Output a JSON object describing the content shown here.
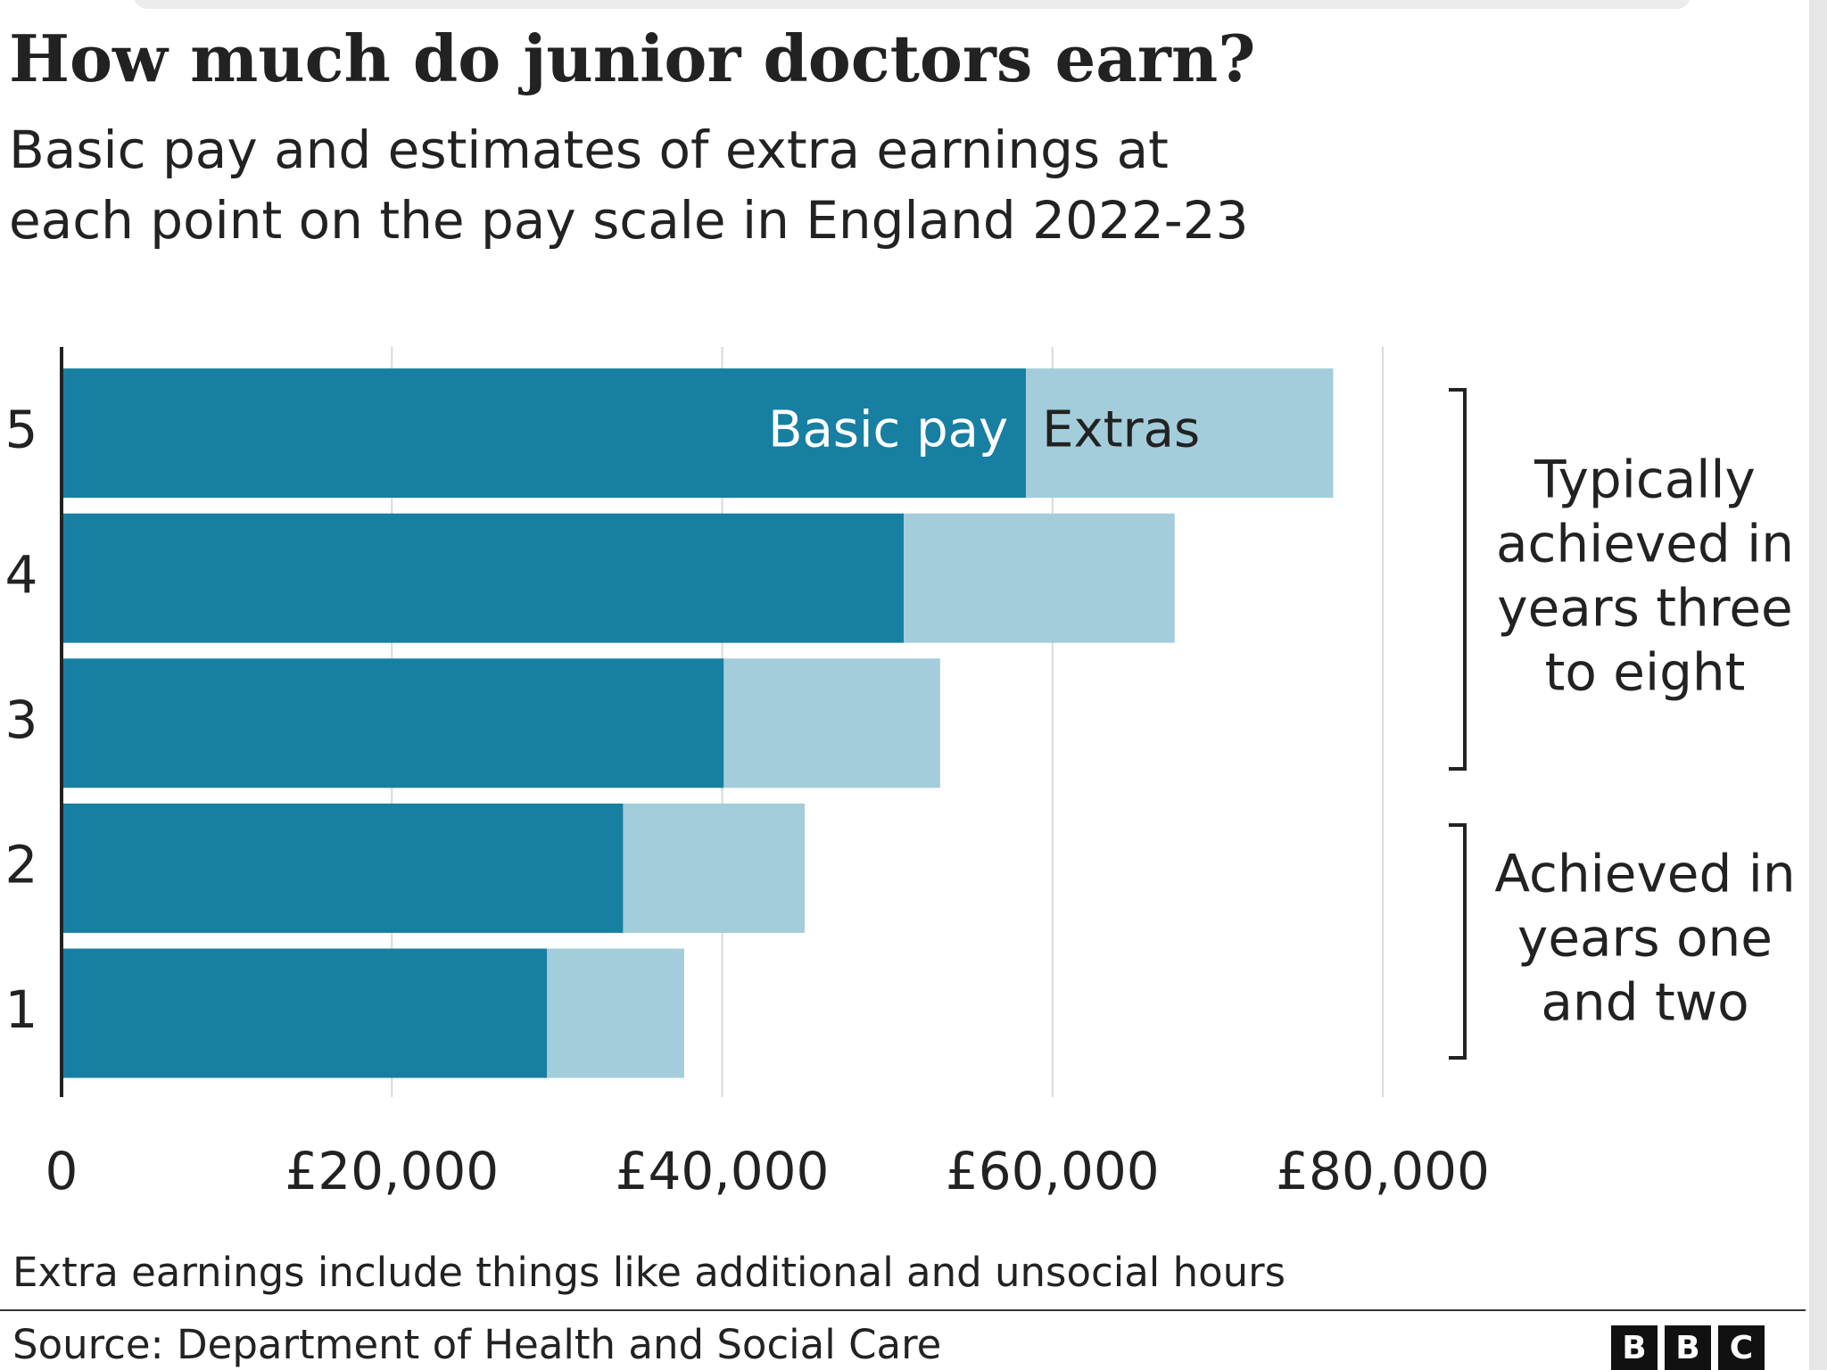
{
  "chart_data": {
    "type": "stacked-barh",
    "title": "How much do junior doctors earn?",
    "subtitle": [
      "Basic pay and estimates of extra earnings at",
      "each point on the pay scale in England 2022-23"
    ],
    "categories": [
      "1",
      "2",
      "3",
      "4",
      "5"
    ],
    "series": [
      {
        "name": "Basic pay",
        "color": "#177fa1",
        "values": [
          29400,
          34000,
          40100,
          51000,
          58400
        ]
      },
      {
        "name": "Extras",
        "color": "#a3cddb",
        "values": [
          8300,
          11000,
          13100,
          16400,
          18600
        ]
      }
    ],
    "xlim": [
      0,
      80000
    ],
    "xticks": [
      0,
      {
        "value": 20000,
        "label": "£20,000"
      },
      {
        "value": 40000,
        "label": "£40,000"
      },
      {
        "value": 60000,
        "label": "£60,000"
      },
      {
        "value": 80000,
        "label": "£80,000"
      }
    ],
    "grid": true,
    "annotations": [
      {
        "lines": [
          "Typically",
          "achieved in",
          "years three",
          "to eight"
        ]
      },
      {
        "lines": [
          "Achieved in",
          "years one",
          "and two"
        ]
      }
    ],
    "footnote": "Extra earnings include things like additional and unsocial hours",
    "source": "Source: Department of Health and Social Care",
    "logo": [
      "B",
      "B",
      "C"
    ]
  }
}
